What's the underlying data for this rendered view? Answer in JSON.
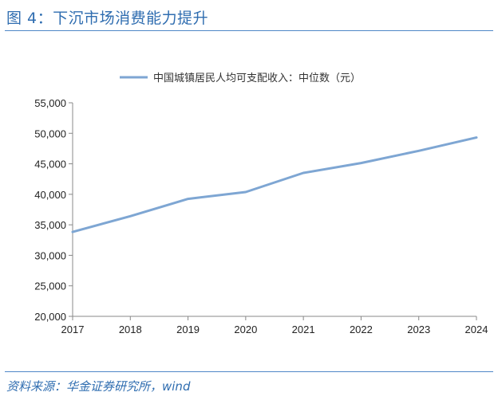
{
  "figure": {
    "title": "图 4：下沉市场消费能力提升",
    "source": "资料来源：华金证券研究所，wind"
  },
  "colors": {
    "accent": "#2f6db0",
    "series": "#7ea6d3"
  },
  "chart_data": {
    "type": "line",
    "x": [
      "2017",
      "2018",
      "2019",
      "2020",
      "2021",
      "2022",
      "2023",
      "2024"
    ],
    "series": [
      {
        "name": "中国城镇居民人均可支配收入：中位数（元）",
        "values": [
          33834,
          36413,
          39244,
          40378,
          43504,
          45123,
          47122,
          49302
        ]
      }
    ],
    "ylim": [
      20000,
      55000
    ],
    "yticks": [
      "20,000",
      "25,000",
      "30,000",
      "35,000",
      "40,000",
      "45,000",
      "50,000",
      "55,000"
    ],
    "ytick_values": [
      20000,
      25000,
      30000,
      35000,
      40000,
      45000,
      50000,
      55000
    ],
    "legend": "top",
    "grid": false
  }
}
